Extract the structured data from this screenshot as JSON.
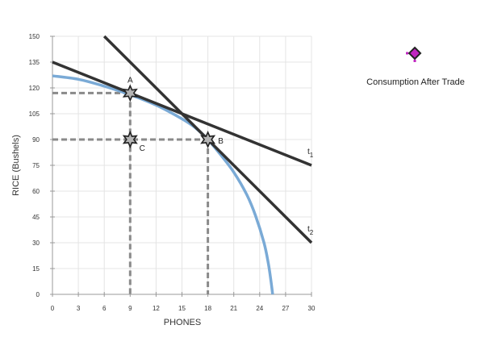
{
  "chart_data": {
    "type": "line",
    "xlabel": "PHONES",
    "ylabel": "RICE (Bushels)",
    "xlim": [
      0,
      30
    ],
    "ylim": [
      0,
      150
    ],
    "x_ticks": [
      0,
      3,
      6,
      9,
      12,
      15,
      18,
      21,
      24,
      27,
      30
    ],
    "y_ticks": [
      0,
      15,
      30,
      45,
      60,
      75,
      90,
      105,
      120,
      135,
      150
    ],
    "grid": true,
    "ppf": {
      "color": "#7aaad6",
      "points": [
        [
          0,
          127
        ],
        [
          3,
          125
        ],
        [
          6,
          121
        ],
        [
          9,
          116
        ],
        [
          12,
          110
        ],
        [
          15,
          102
        ],
        [
          16.5,
          97
        ],
        [
          18,
          90
        ],
        [
          19.5,
          81
        ],
        [
          21,
          71
        ],
        [
          22.5,
          58
        ],
        [
          23.5,
          46
        ],
        [
          24.5,
          30
        ],
        [
          25,
          18
        ],
        [
          25.3,
          8
        ],
        [
          25.5,
          0
        ]
      ]
    },
    "trade_lines": [
      {
        "name": "t1",
        "label_main": "t",
        "label_sub": "1",
        "color": "#333333",
        "from": [
          0,
          135
        ],
        "to": [
          30,
          75
        ]
      },
      {
        "name": "t2",
        "label_main": "t",
        "label_sub": "2",
        "color": "#333333",
        "from": [
          6,
          150
        ],
        "to": [
          30,
          30
        ]
      }
    ],
    "points": [
      {
        "label": "A",
        "x": 9,
        "y": 117
      },
      {
        "label": "C",
        "x": 9,
        "y": 90
      },
      {
        "label": "B",
        "x": 18,
        "y": 90
      }
    ],
    "dashed_guides": [
      {
        "from": [
          0,
          117
        ],
        "to": [
          9,
          117
        ]
      },
      {
        "from": [
          9,
          117
        ],
        "to": [
          9,
          0
        ]
      },
      {
        "from": [
          0,
          90
        ],
        "to": [
          18,
          90
        ]
      },
      {
        "from": [
          18,
          90
        ],
        "to": [
          18,
          0
        ]
      }
    ],
    "legend": {
      "label": "Consumption After Trade",
      "marker_color": "#c026c0",
      "position": "top-right"
    }
  }
}
